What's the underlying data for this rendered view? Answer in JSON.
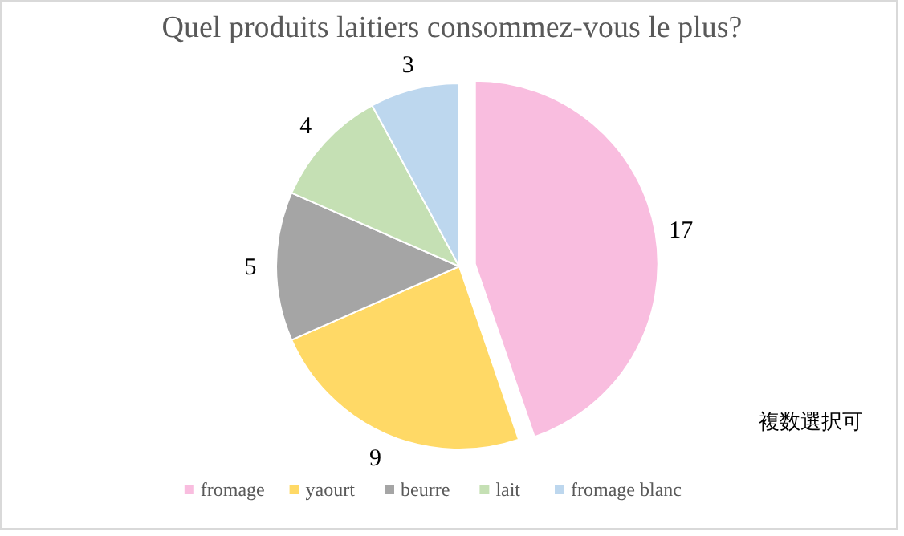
{
  "chart_data": {
    "type": "pie",
    "title": "Quel produits laitiers consommez-vous le plus?",
    "categories": [
      "fromage",
      "yaourt",
      "beurre",
      "lait",
      "fromage blanc"
    ],
    "values": [
      17,
      9,
      5,
      4,
      3
    ],
    "colors": [
      "#f9bddf",
      "#ffd966",
      "#a5a5a5",
      "#c5e0b4",
      "#bdd7ee"
    ],
    "data_labels": true,
    "legend": "bottom",
    "annotations": [
      "複数選択可"
    ]
  }
}
